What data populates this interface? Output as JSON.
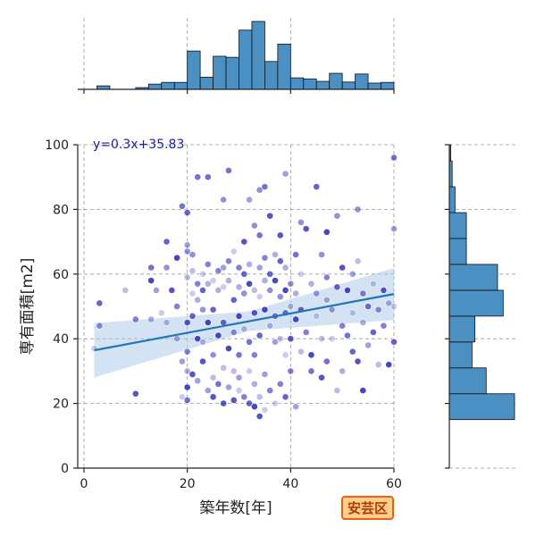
{
  "badge": "安芸区",
  "chart_data": {
    "type": "scatter",
    "title": "",
    "xlabel": "築年数[年]",
    "ylabel": "専有面積[m2]",
    "xlim": [
      -1,
      60
    ],
    "ylim": [
      0,
      100
    ],
    "xticks": [
      0,
      20,
      40,
      60
    ],
    "yticks": [
      0,
      20,
      40,
      60,
      80,
      100
    ],
    "grid": true,
    "regression": {
      "label": "y=0.3x+35.83",
      "slope": 0.3,
      "intercept": 35.83,
      "x_range": [
        2,
        60
      ]
    },
    "colors": {
      "points": "#3030c0",
      "line": "#1f77b4",
      "band": "#a8c8e8",
      "hist": "#4a90c2"
    },
    "x_hist": {
      "bin_edges": [
        2.5,
        5,
        7.5,
        10,
        12.5,
        15,
        17.5,
        20,
        22.5,
        25,
        27.5,
        30,
        32.5,
        35,
        37.5,
        40,
        42.5,
        45,
        47.5,
        50,
        52.5,
        55,
        57.5,
        60
      ],
      "counts": [
        1,
        0,
        0,
        0.5,
        1.5,
        2,
        2,
        11,
        3.5,
        9.5,
        9.2,
        17,
        19.5,
        8,
        13,
        3.3,
        3,
        2.3,
        4.6,
        2.1,
        4.4,
        1.8,
        2
      ]
    },
    "y_hist": {
      "bin_edges": [
        15,
        23,
        31,
        39,
        47,
        55,
        63,
        71,
        79,
        87,
        95,
        100
      ],
      "counts": [
        23,
        13,
        8,
        9,
        19,
        17,
        6,
        6,
        2,
        1,
        0.5
      ]
    },
    "points": [
      [
        2,
        37
      ],
      [
        3,
        51
      ],
      [
        3,
        44
      ],
      [
        8,
        55
      ],
      [
        10,
        23
      ],
      [
        10,
        46
      ],
      [
        13,
        46
      ],
      [
        13,
        58
      ],
      [
        13,
        62
      ],
      [
        14,
        55
      ],
      [
        15,
        48
      ],
      [
        16,
        70
      ],
      [
        16,
        62
      ],
      [
        16,
        45
      ],
      [
        17,
        55
      ],
      [
        18,
        50
      ],
      [
        18,
        40
      ],
      [
        18,
        65
      ],
      [
        19,
        81
      ],
      [
        19,
        33
      ],
      [
        19,
        22
      ],
      [
        20,
        79
      ],
      [
        20,
        67
      ],
      [
        20,
        59
      ],
      [
        20,
        45
      ],
      [
        20,
        36
      ],
      [
        20,
        30
      ],
      [
        20,
        25
      ],
      [
        20,
        21
      ],
      [
        20,
        69
      ],
      [
        21,
        54
      ],
      [
        21,
        47
      ],
      [
        21,
        66
      ],
      [
        21,
        61
      ],
      [
        21,
        29
      ],
      [
        22,
        57
      ],
      [
        22,
        52
      ],
      [
        22,
        40
      ],
      [
        22,
        90
      ],
      [
        22,
        27
      ],
      [
        23,
        60
      ],
      [
        23,
        55
      ],
      [
        23,
        49
      ],
      [
        23,
        39
      ],
      [
        23,
        33
      ],
      [
        24,
        63
      ],
      [
        24,
        57
      ],
      [
        24,
        45
      ],
      [
        24,
        90
      ],
      [
        24,
        24
      ],
      [
        25,
        58
      ],
      [
        25,
        49
      ],
      [
        25,
        35
      ],
      [
        25,
        28
      ],
      [
        25,
        22
      ],
      [
        26,
        61
      ],
      [
        26,
        55
      ],
      [
        26,
        41
      ],
      [
        26,
        26
      ],
      [
        27,
        62
      ],
      [
        27,
        56
      ],
      [
        27,
        45
      ],
      [
        27,
        83
      ],
      [
        27,
        31
      ],
      [
        27,
        20
      ],
      [
        28,
        64
      ],
      [
        28,
        58
      ],
      [
        28,
        37
      ],
      [
        28,
        92
      ],
      [
        28,
        25
      ],
      [
        29,
        67
      ],
      [
        29,
        52
      ],
      [
        29,
        42
      ],
      [
        29,
        30
      ],
      [
        29,
        21
      ],
      [
        30,
        62
      ],
      [
        30,
        56
      ],
      [
        30,
        47
      ],
      [
        30,
        35
      ],
      [
        30,
        28
      ],
      [
        30,
        24
      ],
      [
        31,
        60
      ],
      [
        31,
        54
      ],
      [
        31,
        43
      ],
      [
        31,
        70
      ],
      [
        31,
        22
      ],
      [
        32,
        63
      ],
      [
        32,
        57
      ],
      [
        32,
        39
      ],
      [
        32,
        83
      ],
      [
        32,
        30
      ],
      [
        32,
        20
      ],
      [
        33,
        75
      ],
      [
        33,
        55
      ],
      [
        33,
        48
      ],
      [
        33,
        35
      ],
      [
        33,
        26
      ],
      [
        33,
        19
      ],
      [
        34,
        72
      ],
      [
        34,
        62
      ],
      [
        34,
        53
      ],
      [
        34,
        41
      ],
      [
        34,
        86
      ],
      [
        34,
        22
      ],
      [
        34,
        16
      ],
      [
        35,
        65
      ],
      [
        35,
        58
      ],
      [
        35,
        49
      ],
      [
        35,
        87
      ],
      [
        35,
        29
      ],
      [
        35,
        18
      ],
      [
        36,
        60
      ],
      [
        36,
        55
      ],
      [
        36,
        44
      ],
      [
        36,
        78
      ],
      [
        36,
        24
      ],
      [
        37,
        66
      ],
      [
        37,
        58
      ],
      [
        37,
        47
      ],
      [
        37,
        39
      ],
      [
        37,
        20
      ],
      [
        38,
        64
      ],
      [
        38,
        53
      ],
      [
        38,
        40
      ],
      [
        38,
        72
      ],
      [
        38,
        26
      ],
      [
        39,
        62
      ],
      [
        39,
        55
      ],
      [
        39,
        48
      ],
      [
        39,
        91
      ],
      [
        39,
        35
      ],
      [
        39,
        22
      ],
      [
        40,
        57
      ],
      [
        40,
        50
      ],
      [
        40,
        40
      ],
      [
        40,
        30
      ],
      [
        41,
        54
      ],
      [
        41,
        46
      ],
      [
        41,
        66
      ],
      [
        41,
        19
      ],
      [
        42,
        60
      ],
      [
        42,
        49
      ],
      [
        42,
        76
      ],
      [
        42,
        36
      ],
      [
        43,
        74
      ],
      [
        43,
        42
      ],
      [
        44,
        57
      ],
      [
        44,
        35
      ],
      [
        44,
        30
      ],
      [
        45,
        54
      ],
      [
        45,
        47
      ],
      [
        45,
        87
      ],
      [
        46,
        66
      ],
      [
        46,
        40
      ],
      [
        46,
        28
      ],
      [
        47,
        59
      ],
      [
        47,
        52
      ],
      [
        47,
        73
      ],
      [
        47,
        33
      ],
      [
        48,
        49
      ],
      [
        48,
        40
      ],
      [
        49,
        56
      ],
      [
        49,
        78
      ],
      [
        49,
        24
      ],
      [
        50,
        62
      ],
      [
        50,
        44
      ],
      [
        50,
        30
      ],
      [
        51,
        55
      ],
      [
        51,
        41
      ],
      [
        52,
        60
      ],
      [
        52,
        48
      ],
      [
        52,
        36
      ],
      [
        53,
        80
      ],
      [
        53,
        64
      ],
      [
        53,
        33
      ],
      [
        54,
        54
      ],
      [
        54,
        45
      ],
      [
        54,
        24
      ],
      [
        55,
        50
      ],
      [
        55,
        38
      ],
      [
        56,
        57
      ],
      [
        56,
        42
      ],
      [
        57,
        49
      ],
      [
        57,
        32
      ],
      [
        58,
        55
      ],
      [
        58,
        44
      ],
      [
        59,
        51
      ],
      [
        59,
        32
      ],
      [
        60,
        96
      ],
      [
        60,
        74
      ],
      [
        60,
        50
      ],
      [
        60,
        39
      ]
    ]
  }
}
